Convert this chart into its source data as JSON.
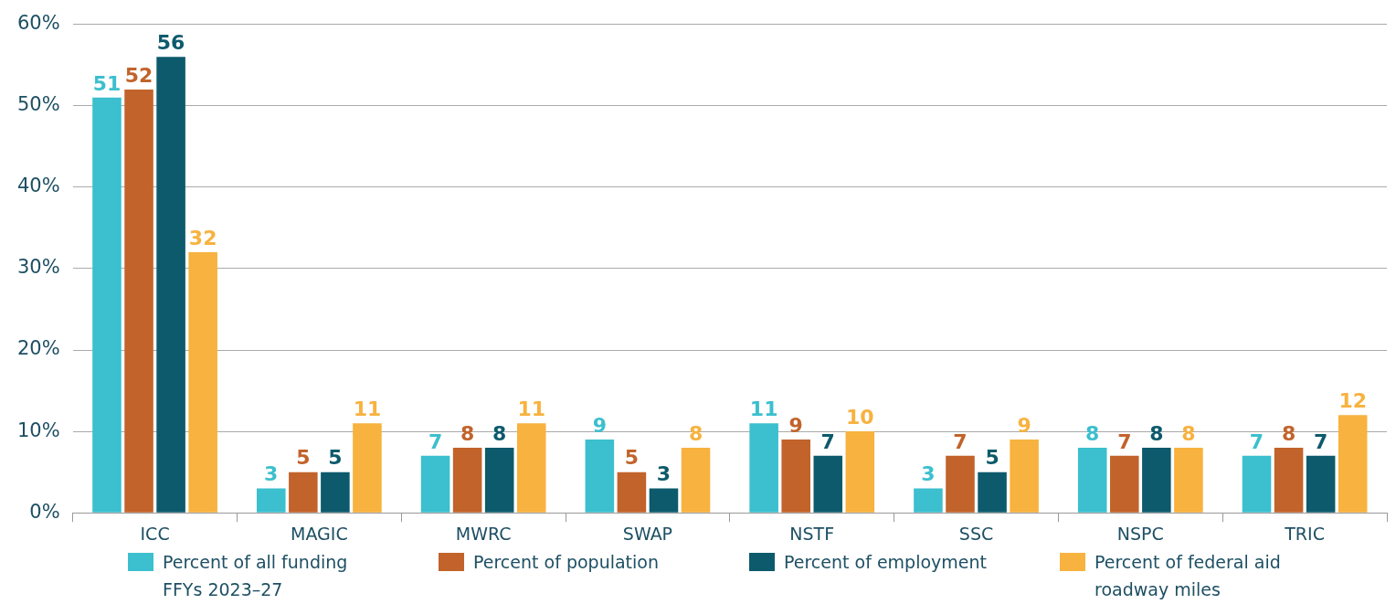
{
  "chart_data": {
    "type": "bar",
    "categories": [
      "ICC",
      "MAGIC",
      "MWRC",
      "SWAP",
      "NSTF",
      "SSC",
      "NSPC",
      "TRIC"
    ],
    "series": [
      {
        "name": "Percent of all funding FFYs 2023–27",
        "color": "#3cbfce",
        "values": [
          51,
          3,
          7,
          9,
          11,
          3,
          8,
          7
        ]
      },
      {
        "name": "Percent of population",
        "color": "#c2632b",
        "values": [
          52,
          5,
          8,
          5,
          9,
          7,
          7,
          8
        ]
      },
      {
        "name": "Percent of employment",
        "color": "#0d5a6c",
        "values": [
          56,
          5,
          8,
          3,
          7,
          5,
          8,
          7
        ]
      },
      {
        "name": "Percent of federal aid roadway miles",
        "color": "#f7b23f",
        "values": [
          32,
          11,
          11,
          8,
          10,
          9,
          8,
          12
        ]
      }
    ],
    "ylim": [
      0,
      60
    ],
    "yticks": [
      {
        "value": 0,
        "label": "0%"
      },
      {
        "value": 10,
        "label": "10%"
      },
      {
        "value": 20,
        "label": "20%"
      },
      {
        "value": 30,
        "label": "30%"
      },
      {
        "value": 40,
        "label": "40%"
      },
      {
        "value": 50,
        "label": "50%"
      },
      {
        "value": 60,
        "label": "60%"
      }
    ],
    "grid": "y",
    "legend": "bottom",
    "data_labels": true
  }
}
